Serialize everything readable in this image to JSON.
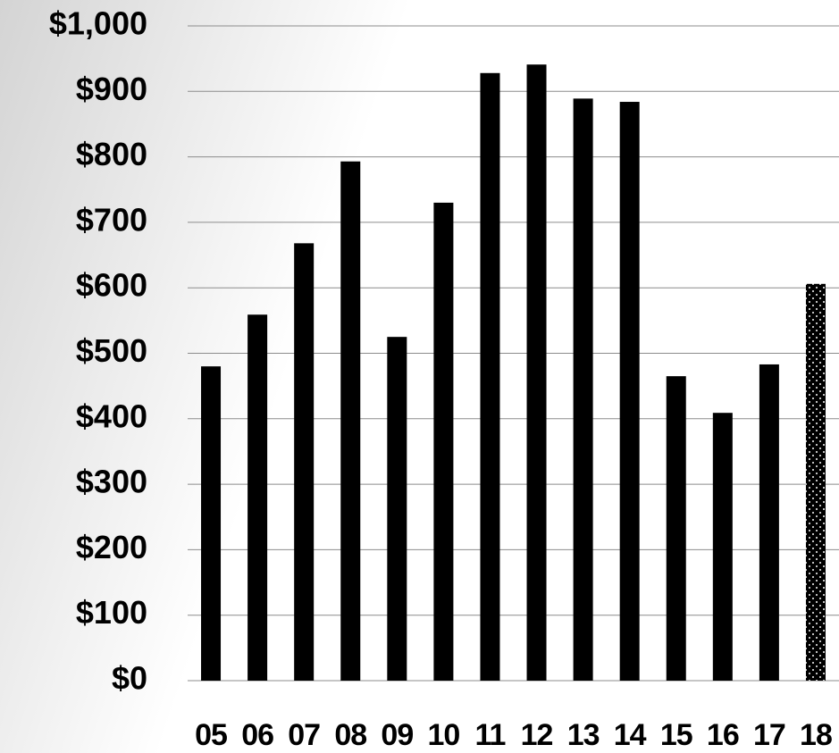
{
  "chart_data": {
    "type": "bar",
    "categories": [
      "05",
      "06",
      "07",
      "08",
      "09",
      "10",
      "11",
      "12",
      "13",
      "14",
      "15",
      "16",
      "17",
      "18"
    ],
    "values": [
      480,
      559,
      668,
      793,
      525,
      730,
      928,
      941,
      889,
      884,
      465,
      409,
      483,
      606
    ],
    "color": "#000000",
    "patterns": [
      "solid",
      "solid",
      "solid",
      "solid",
      "solid",
      "solid",
      "solid",
      "solid",
      "solid",
      "solid",
      "solid",
      "solid",
      "solid",
      "dotted"
    ],
    "ylim": [
      0,
      1000
    ],
    "yticks": [
      {
        "value": 0,
        "label": "$0"
      },
      {
        "value": 100,
        "label": "$100"
      },
      {
        "value": 200,
        "label": "$200"
      },
      {
        "value": 300,
        "label": "$300"
      },
      {
        "value": 400,
        "label": "$400"
      },
      {
        "value": 500,
        "label": "$500"
      },
      {
        "value": 600,
        "label": "$600"
      },
      {
        "value": 700,
        "label": "$700"
      },
      {
        "value": 800,
        "label": "$800"
      },
      {
        "value": 900,
        "label": "$900"
      },
      {
        "value": 1000,
        "label": "$1,000"
      }
    ],
    "grid": true
  }
}
